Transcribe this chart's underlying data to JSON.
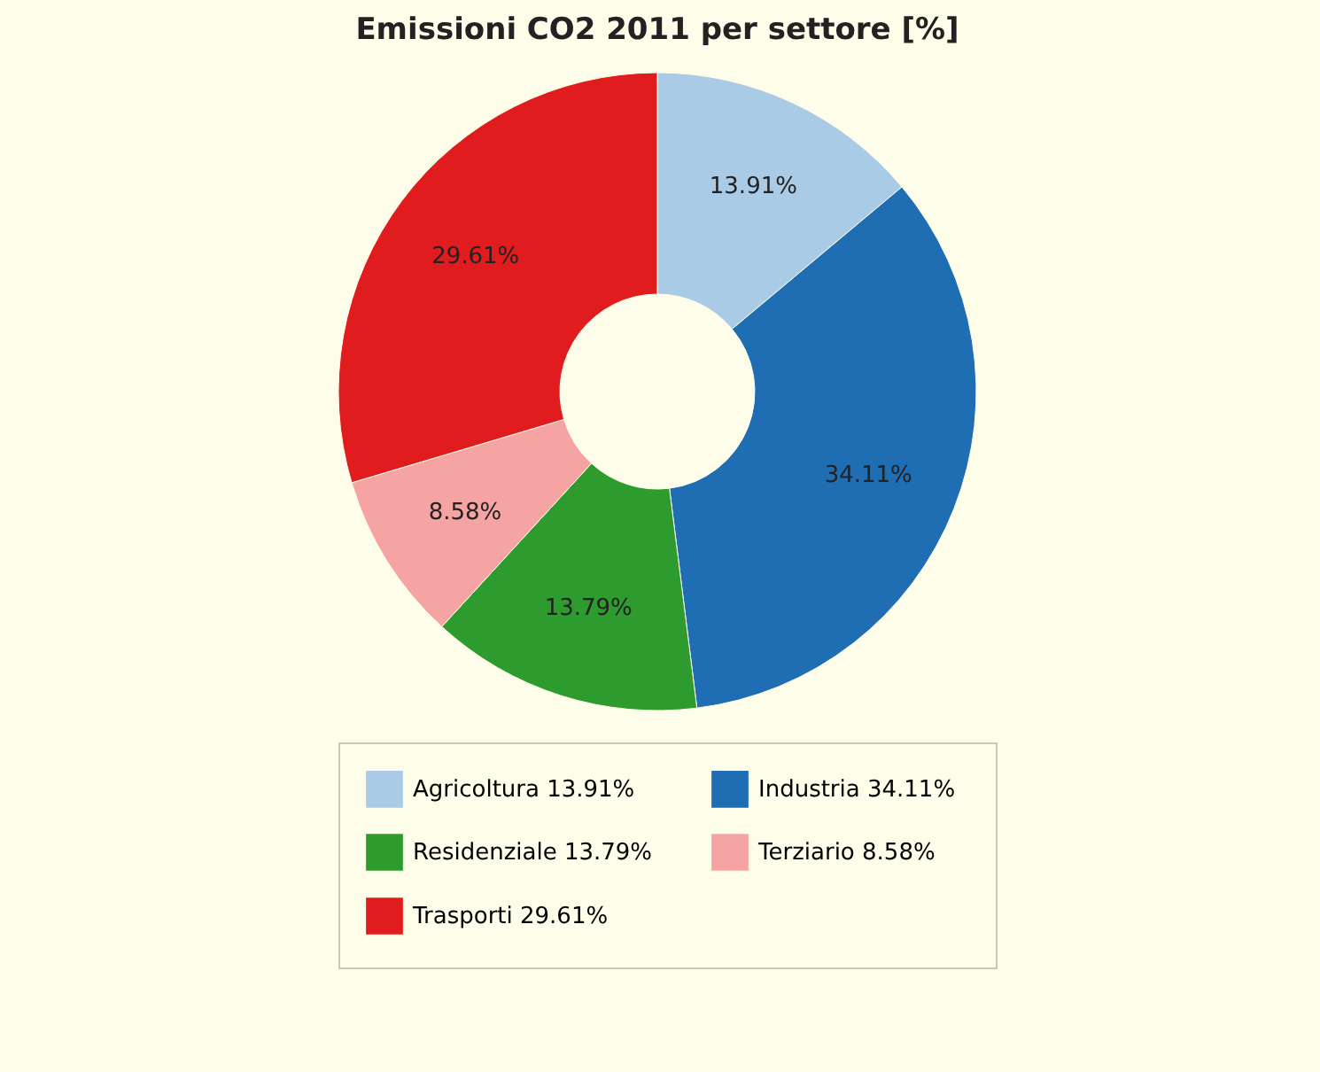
{
  "chart_data": {
    "type": "donut",
    "title": "Emissioni CO2 2011 per settore [%]",
    "categories": [
      "Agricoltura",
      "Industria",
      "Residenziale",
      "Terziario",
      "Trasporti"
    ],
    "values": [
      13.91,
      34.11,
      13.79,
      8.58,
      29.61
    ],
    "colors": [
      "#a9cbe6",
      "#1f6eb3",
      "#2e9b2e",
      "#f6a3a3",
      "#e01c1f"
    ],
    "value_labels": [
      "13.91%",
      "34.11%",
      "13.79%",
      "8.58%",
      "29.61%"
    ],
    "legend": "bottom"
  }
}
